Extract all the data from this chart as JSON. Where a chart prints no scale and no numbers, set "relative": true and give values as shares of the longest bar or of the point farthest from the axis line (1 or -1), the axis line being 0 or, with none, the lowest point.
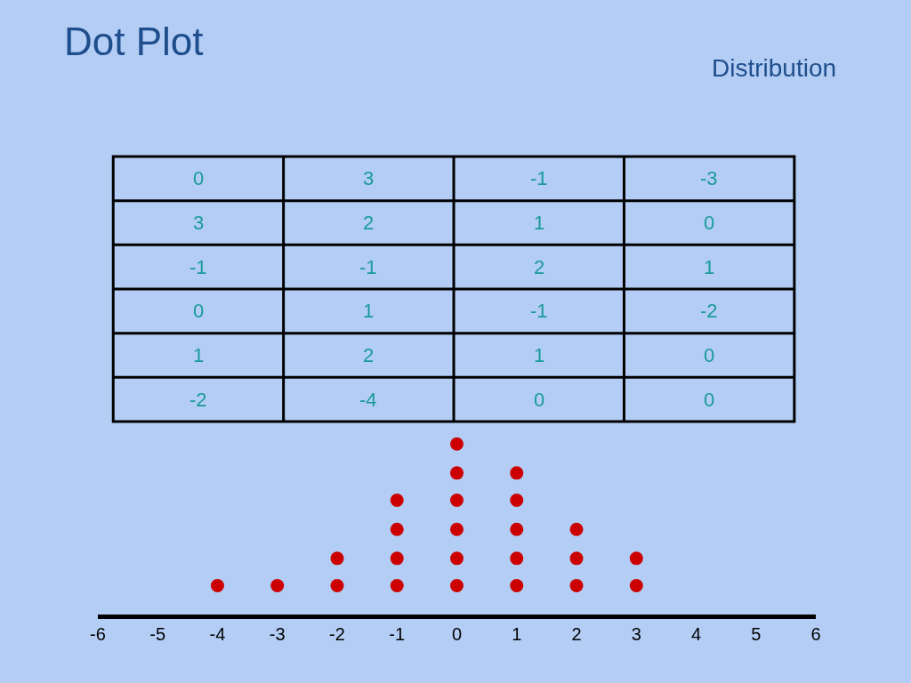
{
  "chart_data": {
    "type": "scatter",
    "title": "Dot Plot",
    "subtitle": "Distribution",
    "x": [
      -4,
      -3,
      -2,
      -2,
      -1,
      -1,
      -1,
      -1,
      0,
      0,
      0,
      0,
      0,
      0,
      1,
      1,
      1,
      1,
      1,
      2,
      2,
      2,
      3,
      3
    ],
    "values": [
      0.17,
      0.17,
      0.17,
      0.33,
      0.17,
      0.33,
      0.5,
      0.67,
      0.17,
      0.33,
      0.5,
      0.67,
      0.83,
      1,
      0.17,
      0.33,
      0.5,
      0.67,
      0.83,
      0.17,
      0.33,
      0.5,
      0.17,
      0.33
    ],
    "color": "#cc0000",
    "marker": "circle",
    "relative": true,
    "xlim": [
      -6,
      6
    ],
    "xticks": [
      -6,
      -5,
      -4,
      -3,
      -2,
      -1,
      0,
      1,
      2,
      3,
      4,
      5,
      6
    ],
    "tick_labels": "x",
    "grid": false,
    "annotations": [
      "0",
      "3",
      "-1",
      "-3",
      "3",
      "2",
      "1",
      "0",
      "-1",
      "-1",
      "2",
      "1",
      "0",
      "1",
      "-1",
      "-2",
      "1",
      "2",
      "1",
      "0",
      "-2",
      "-4",
      "0",
      "0"
    ]
  }
}
